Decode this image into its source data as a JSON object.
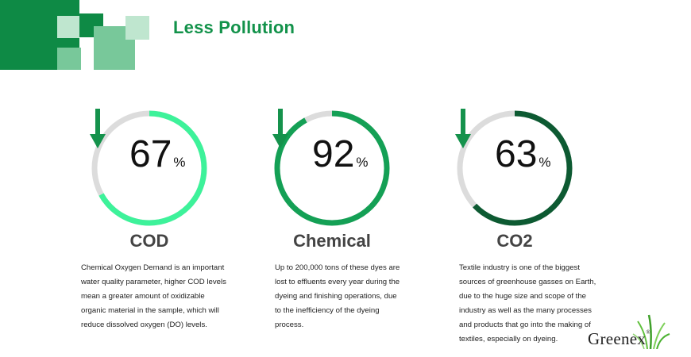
{
  "header": {
    "title": "Less Pollution"
  },
  "metrics": [
    {
      "label": "COD",
      "value": "67",
      "unit": "%",
      "fraction": 0.67,
      "color": "#3df29a",
      "description": [
        "Chemical Oxygen Demand is an important",
        "water quality parameter, higher COD levels",
        "mean a greater amount of oxidizable",
        "organic material in the sample, which will",
        "reduce dissolved oxygen (DO) levels."
      ]
    },
    {
      "label": "Chemical",
      "value": "92",
      "unit": "%",
      "fraction": 0.92,
      "color": "#14a055",
      "description": [
        "Up to 200,000 tons of these dyes are",
        "lost to effluents every year during the",
        "dyeing and finishing operations, due",
        "to the inefficiency of the dyeing",
        "process."
      ]
    },
    {
      "label": "CO2",
      "value": "63",
      "unit": "%",
      "fraction": 0.63,
      "color": "#0d5a32",
      "description": [
        "Textile industry is one of the biggest",
        "sources of greenhouse gasses on Earth,",
        "due to the huge size and scope of the",
        "industry as well as the many processes",
        "and products that go into the making of",
        "textiles, especially on dyeing."
      ]
    }
  ],
  "colors": {
    "track": "#dcdcdc",
    "arrow": "#15924c",
    "title": "#12924a"
  },
  "icons": [
    "down-arrow-icon",
    "grass-icon"
  ],
  "logo": {
    "text": "Greenex",
    "reg": "®"
  }
}
